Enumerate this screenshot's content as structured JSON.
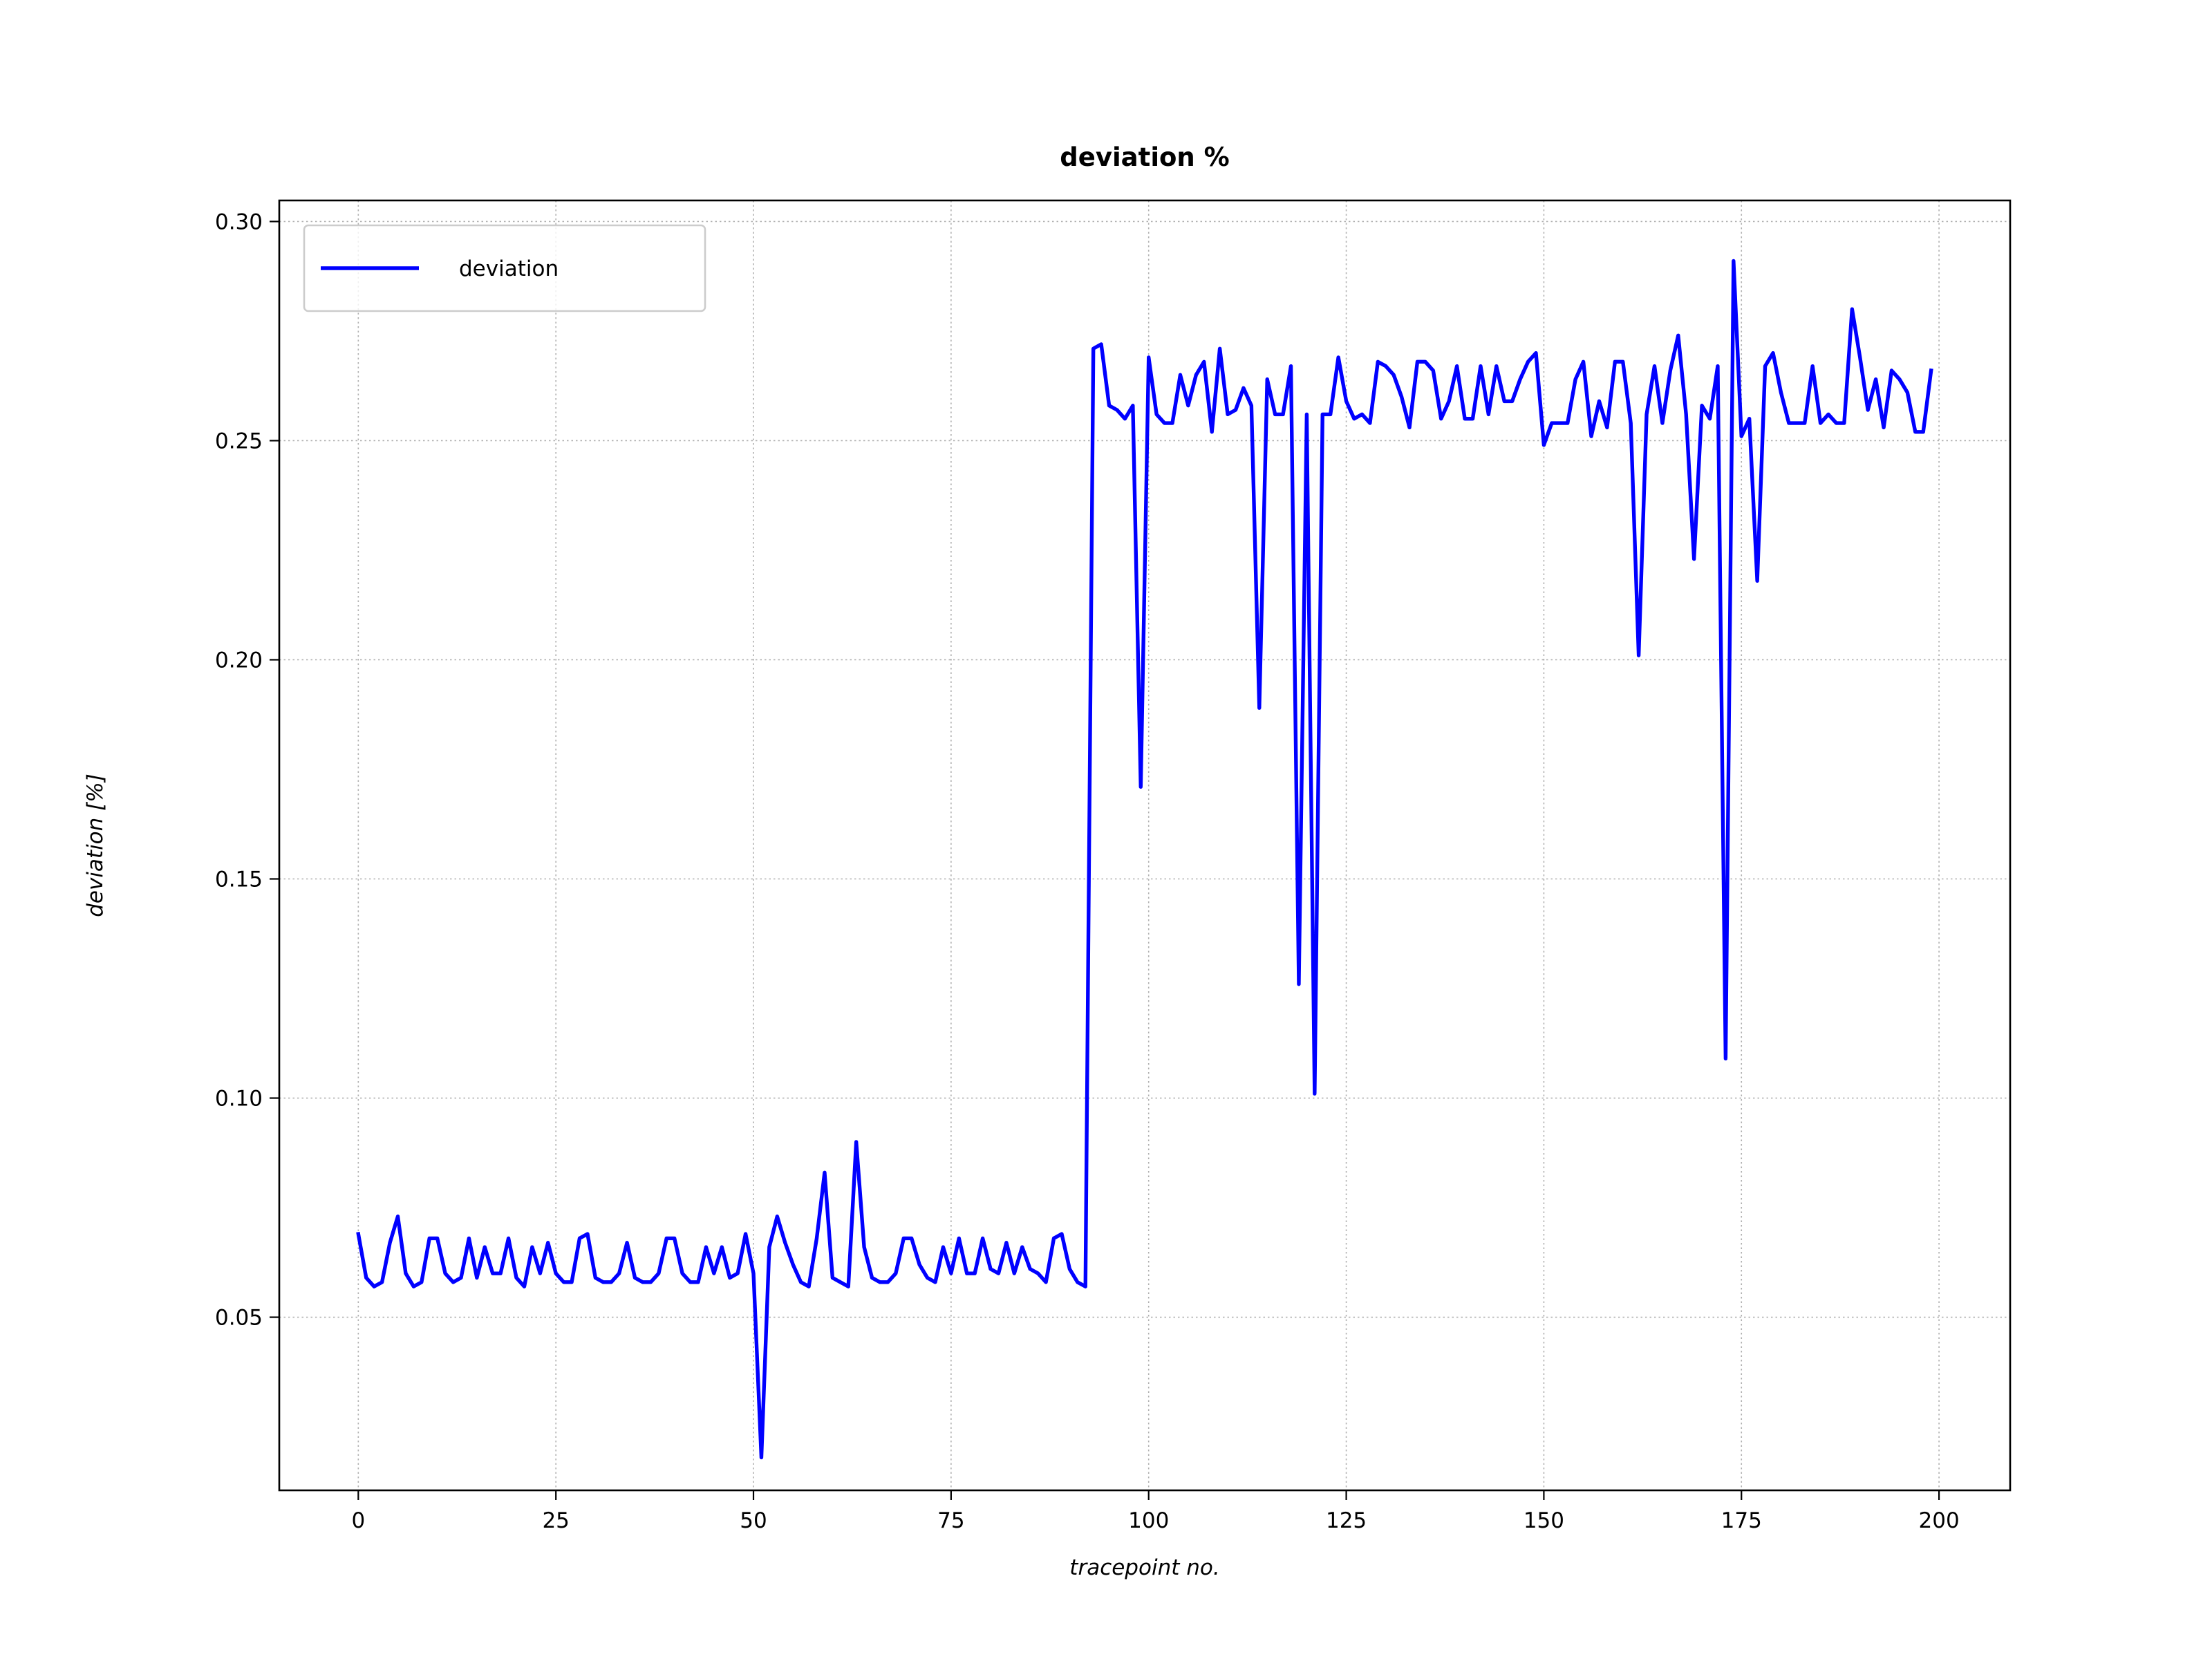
{
  "chart_data": {
    "type": "line",
    "title": "deviation %",
    "xlabel": "tracepoint no.",
    "ylabel": "deviation [%]",
    "xlim": [
      -10,
      209
    ],
    "ylim": [
      0.0105,
      0.3048
    ],
    "xticks": [
      0,
      25,
      50,
      75,
      100,
      125,
      150,
      175,
      200
    ],
    "xtick_labels": [
      "0",
      "25",
      "50",
      "75",
      "100",
      "125",
      "150",
      "175",
      "200"
    ],
    "yticks": [
      0.05,
      0.1,
      0.15,
      0.2,
      0.25,
      0.3
    ],
    "ytick_labels": [
      "0.05",
      "0.10",
      "0.15",
      "0.20",
      "0.25",
      "0.30"
    ],
    "grid": true,
    "legend_position": "upper-left",
    "series": [
      {
        "name": "deviation",
        "color": "#0000ff",
        "x": [
          0,
          1,
          2,
          3,
          4,
          5,
          6,
          7,
          8,
          9,
          10,
          11,
          12,
          13,
          14,
          15,
          16,
          17,
          18,
          19,
          20,
          21,
          22,
          23,
          24,
          25,
          26,
          27,
          28,
          29,
          30,
          31,
          32,
          33,
          34,
          35,
          36,
          37,
          38,
          39,
          40,
          41,
          42,
          43,
          44,
          45,
          46,
          47,
          48,
          49,
          50,
          51,
          52,
          53,
          54,
          55,
          56,
          57,
          58,
          59,
          60,
          61,
          62,
          63,
          64,
          65,
          66,
          67,
          68,
          69,
          70,
          71,
          72,
          73,
          74,
          75,
          76,
          77,
          78,
          79,
          80,
          81,
          82,
          83,
          84,
          85,
          86,
          87,
          88,
          89,
          90,
          91,
          92,
          93,
          94,
          95,
          96,
          97,
          98,
          99,
          100,
          101,
          102,
          103,
          104,
          105,
          106,
          107,
          108,
          109,
          110,
          111,
          112,
          113,
          114,
          115,
          116,
          117,
          118,
          119,
          120,
          121,
          122,
          123,
          124,
          125,
          126,
          127,
          128,
          129,
          130,
          131,
          132,
          133,
          134,
          135,
          136,
          137,
          138,
          139,
          140,
          141,
          142,
          143,
          144,
          145,
          146,
          147,
          148,
          149,
          150,
          151,
          152,
          153,
          154,
          155,
          156,
          157,
          158,
          159,
          160,
          161,
          162,
          163,
          164,
          165,
          166,
          167,
          168,
          169,
          170,
          171,
          172,
          173,
          174,
          175,
          176,
          177,
          178,
          179,
          180,
          181,
          182,
          183,
          184,
          185,
          186,
          187,
          188,
          189,
          190,
          191,
          192,
          193,
          194,
          195,
          196,
          197,
          198,
          199
        ],
        "values": [
          0.069,
          0.059,
          0.057,
          0.058,
          0.067,
          0.073,
          0.06,
          0.057,
          0.058,
          0.068,
          0.068,
          0.06,
          0.058,
          0.059,
          0.068,
          0.059,
          0.066,
          0.06,
          0.06,
          0.068,
          0.059,
          0.057,
          0.066,
          0.06,
          0.067,
          0.06,
          0.058,
          0.058,
          0.068,
          0.069,
          0.059,
          0.058,
          0.058,
          0.06,
          0.067,
          0.059,
          0.058,
          0.058,
          0.06,
          0.068,
          0.068,
          0.06,
          0.058,
          0.058,
          0.066,
          0.06,
          0.066,
          0.059,
          0.06,
          0.069,
          0.06,
          0.018,
          0.066,
          0.073,
          0.067,
          0.062,
          0.058,
          0.057,
          0.068,
          0.083,
          0.059,
          0.058,
          0.057,
          0.09,
          0.066,
          0.059,
          0.058,
          0.058,
          0.06,
          0.068,
          0.068,
          0.062,
          0.059,
          0.058,
          0.066,
          0.06,
          0.068,
          0.06,
          0.06,
          0.068,
          0.061,
          0.06,
          0.067,
          0.06,
          0.066,
          0.061,
          0.06,
          0.058,
          0.068,
          0.069,
          0.061,
          0.058,
          0.057,
          0.271,
          0.272,
          0.258,
          0.257,
          0.255,
          0.258,
          0.171,
          0.269,
          0.256,
          0.254,
          0.254,
          0.265,
          0.258,
          0.265,
          0.268,
          0.252,
          0.271,
          0.256,
          0.257,
          0.262,
          0.258,
          0.189,
          0.264,
          0.256,
          0.256,
          0.267,
          0.126,
          0.256,
          0.101,
          0.256,
          0.256,
          0.269,
          0.259,
          0.255,
          0.256,
          0.254,
          0.268,
          0.267,
          0.265,
          0.26,
          0.253,
          0.268,
          0.268,
          0.266,
          0.255,
          0.259,
          0.267,
          0.255,
          0.255,
          0.267,
          0.256,
          0.267,
          0.259,
          0.259,
          0.264,
          0.268,
          0.27,
          0.249,
          0.254,
          0.254,
          0.254,
          0.264,
          0.268,
          0.251,
          0.259,
          0.253,
          0.268,
          0.268,
          0.254,
          0.201,
          0.256,
          0.267,
          0.254,
          0.266,
          0.274,
          0.256,
          0.223,
          0.258,
          0.255,
          0.267,
          0.109,
          0.291,
          0.251,
          0.255,
          0.218,
          0.267,
          0.27,
          0.261,
          0.254,
          0.254,
          0.254,
          0.267,
          0.254,
          0.256,
          0.254,
          0.254,
          0.28,
          0.269,
          0.257,
          0.264,
          0.253,
          0.266,
          0.264,
          0.261,
          0.252,
          0.252,
          0.266
        ]
      }
    ]
  }
}
